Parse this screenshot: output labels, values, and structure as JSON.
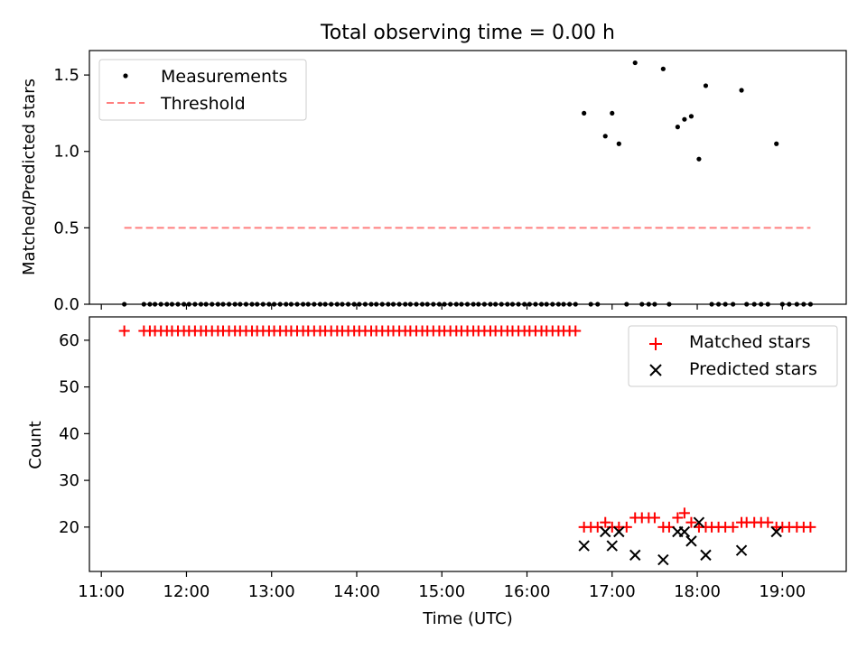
{
  "chart_data": [
    {
      "type": "scatter",
      "title": "Total observing time = 0.00 h",
      "ylabel": "Matched/Predicted stars",
      "xlabel": "",
      "xlim": [
        10.86,
        19.75
      ],
      "ylim": [
        0,
        1.66
      ],
      "yticks": [
        0.0,
        0.5,
        1.0,
        1.5
      ],
      "ytick_labels": [
        "0.0",
        "0.5",
        "1.0",
        "1.5"
      ],
      "legend_position": "upper-left",
      "grid": false,
      "series": [
        {
          "name": "Measurements",
          "marker": "dot",
          "color": "#000000",
          "points": [
            [
              11.27,
              0
            ],
            [
              11.5,
              0
            ],
            [
              11.57,
              0
            ],
            [
              11.63,
              0
            ],
            [
              11.7,
              0
            ],
            [
              11.77,
              0
            ],
            [
              11.83,
              0
            ],
            [
              11.9,
              0
            ],
            [
              11.97,
              0
            ],
            [
              12.03,
              0
            ],
            [
              12.1,
              0
            ],
            [
              12.17,
              0
            ],
            [
              12.23,
              0
            ],
            [
              12.3,
              0
            ],
            [
              12.37,
              0
            ],
            [
              12.43,
              0
            ],
            [
              12.5,
              0
            ],
            [
              12.57,
              0
            ],
            [
              12.63,
              0
            ],
            [
              12.7,
              0
            ],
            [
              12.77,
              0
            ],
            [
              12.83,
              0
            ],
            [
              12.9,
              0
            ],
            [
              12.97,
              0
            ],
            [
              13.03,
              0
            ],
            [
              13.1,
              0
            ],
            [
              13.17,
              0
            ],
            [
              13.23,
              0
            ],
            [
              13.3,
              0
            ],
            [
              13.37,
              0
            ],
            [
              13.43,
              0
            ],
            [
              13.5,
              0
            ],
            [
              13.57,
              0
            ],
            [
              13.63,
              0
            ],
            [
              13.7,
              0
            ],
            [
              13.77,
              0
            ],
            [
              13.83,
              0
            ],
            [
              13.9,
              0
            ],
            [
              13.97,
              0
            ],
            [
              14.03,
              0
            ],
            [
              14.1,
              0
            ],
            [
              14.17,
              0
            ],
            [
              14.23,
              0
            ],
            [
              14.3,
              0
            ],
            [
              14.37,
              0
            ],
            [
              14.43,
              0
            ],
            [
              14.5,
              0
            ],
            [
              14.57,
              0
            ],
            [
              14.63,
              0
            ],
            [
              14.7,
              0
            ],
            [
              14.77,
              0
            ],
            [
              14.83,
              0
            ],
            [
              14.9,
              0
            ],
            [
              14.97,
              0
            ],
            [
              15.03,
              0
            ],
            [
              15.1,
              0
            ],
            [
              15.17,
              0
            ],
            [
              15.23,
              0
            ],
            [
              15.3,
              0
            ],
            [
              15.37,
              0
            ],
            [
              15.43,
              0
            ],
            [
              15.5,
              0
            ],
            [
              15.57,
              0
            ],
            [
              15.63,
              0
            ],
            [
              15.7,
              0
            ],
            [
              15.77,
              0
            ],
            [
              15.83,
              0
            ],
            [
              15.9,
              0
            ],
            [
              15.97,
              0
            ],
            [
              16.03,
              0
            ],
            [
              16.1,
              0
            ],
            [
              16.17,
              0
            ],
            [
              16.23,
              0
            ],
            [
              16.3,
              0
            ],
            [
              16.37,
              0
            ],
            [
              16.43,
              0
            ],
            [
              16.5,
              0
            ],
            [
              16.57,
              0
            ],
            [
              16.67,
              1.25
            ],
            [
              16.75,
              0
            ],
            [
              16.83,
              0
            ],
            [
              16.92,
              1.1
            ],
            [
              17.0,
              1.25
            ],
            [
              17.08,
              1.05
            ],
            [
              17.17,
              0
            ],
            [
              17.27,
              1.58
            ],
            [
              17.35,
              0
            ],
            [
              17.43,
              0
            ],
            [
              17.5,
              0
            ],
            [
              17.6,
              1.54
            ],
            [
              17.67,
              0
            ],
            [
              17.77,
              1.16
            ],
            [
              17.85,
              1.21
            ],
            [
              17.93,
              1.23
            ],
            [
              18.02,
              0.95
            ],
            [
              18.1,
              1.43
            ],
            [
              18.17,
              0
            ],
            [
              18.25,
              0
            ],
            [
              18.33,
              0
            ],
            [
              18.42,
              0
            ],
            [
              18.52,
              1.4
            ],
            [
              18.58,
              0
            ],
            [
              18.67,
              0
            ],
            [
              18.75,
              0
            ],
            [
              18.83,
              0
            ],
            [
              18.93,
              1.05
            ],
            [
              19.0,
              0
            ],
            [
              19.08,
              0
            ],
            [
              19.17,
              0
            ],
            [
              19.25,
              0
            ],
            [
              19.33,
              0
            ]
          ]
        },
        {
          "name": "Threshold",
          "marker": "dashed-line",
          "color": "#ff7f7f",
          "points": [
            [
              11.27,
              0.5
            ],
            [
              19.33,
              0.5
            ]
          ]
        }
      ]
    },
    {
      "type": "scatter",
      "title": "",
      "xlabel": "Time (UTC)",
      "ylabel": "Count",
      "xlim": [
        10.86,
        19.75
      ],
      "ylim": [
        10.5,
        65
      ],
      "xticks": [
        11,
        12,
        13,
        14,
        15,
        16,
        17,
        18,
        19
      ],
      "xtick_labels": [
        "11:00",
        "12:00",
        "13:00",
        "14:00",
        "15:00",
        "16:00",
        "17:00",
        "18:00",
        "19:00"
      ],
      "yticks": [
        20,
        30,
        40,
        50,
        60
      ],
      "ytick_labels": [
        "20",
        "30",
        "40",
        "50",
        "60"
      ],
      "legend_position": "upper-right",
      "grid": false,
      "series": [
        {
          "name": "Matched stars",
          "marker": "plus",
          "color": "#ff0000",
          "points": [
            [
              11.27,
              62
            ],
            [
              11.5,
              62
            ],
            [
              11.57,
              62
            ],
            [
              11.63,
              62
            ],
            [
              11.7,
              62
            ],
            [
              11.77,
              62
            ],
            [
              11.83,
              62
            ],
            [
              11.9,
              62
            ],
            [
              11.97,
              62
            ],
            [
              12.03,
              62
            ],
            [
              12.1,
              62
            ],
            [
              12.17,
              62
            ],
            [
              12.23,
              62
            ],
            [
              12.3,
              62
            ],
            [
              12.37,
              62
            ],
            [
              12.43,
              62
            ],
            [
              12.5,
              62
            ],
            [
              12.57,
              62
            ],
            [
              12.63,
              62
            ],
            [
              12.7,
              62
            ],
            [
              12.77,
              62
            ],
            [
              12.83,
              62
            ],
            [
              12.9,
              62
            ],
            [
              12.97,
              62
            ],
            [
              13.03,
              62
            ],
            [
              13.1,
              62
            ],
            [
              13.17,
              62
            ],
            [
              13.23,
              62
            ],
            [
              13.3,
              62
            ],
            [
              13.37,
              62
            ],
            [
              13.43,
              62
            ],
            [
              13.5,
              62
            ],
            [
              13.57,
              62
            ],
            [
              13.63,
              62
            ],
            [
              13.7,
              62
            ],
            [
              13.77,
              62
            ],
            [
              13.83,
              62
            ],
            [
              13.9,
              62
            ],
            [
              13.97,
              62
            ],
            [
              14.03,
              62
            ],
            [
              14.1,
              62
            ],
            [
              14.17,
              62
            ],
            [
              14.23,
              62
            ],
            [
              14.3,
              62
            ],
            [
              14.37,
              62
            ],
            [
              14.43,
              62
            ],
            [
              14.5,
              62
            ],
            [
              14.57,
              62
            ],
            [
              14.63,
              62
            ],
            [
              14.7,
              62
            ],
            [
              14.77,
              62
            ],
            [
              14.83,
              62
            ],
            [
              14.9,
              62
            ],
            [
              14.97,
              62
            ],
            [
              15.03,
              62
            ],
            [
              15.1,
              62
            ],
            [
              15.17,
              62
            ],
            [
              15.23,
              62
            ],
            [
              15.3,
              62
            ],
            [
              15.37,
              62
            ],
            [
              15.43,
              62
            ],
            [
              15.5,
              62
            ],
            [
              15.57,
              62
            ],
            [
              15.63,
              62
            ],
            [
              15.7,
              62
            ],
            [
              15.77,
              62
            ],
            [
              15.83,
              62
            ],
            [
              15.9,
              62
            ],
            [
              15.97,
              62
            ],
            [
              16.03,
              62
            ],
            [
              16.1,
              62
            ],
            [
              16.17,
              62
            ],
            [
              16.23,
              62
            ],
            [
              16.3,
              62
            ],
            [
              16.37,
              62
            ],
            [
              16.43,
              62
            ],
            [
              16.5,
              62
            ],
            [
              16.57,
              62
            ],
            [
              16.67,
              20
            ],
            [
              16.75,
              20
            ],
            [
              16.83,
              20
            ],
            [
              16.92,
              21
            ],
            [
              17.0,
              20
            ],
            [
              17.08,
              20
            ],
            [
              17.17,
              20
            ],
            [
              17.27,
              22
            ],
            [
              17.35,
              22
            ],
            [
              17.43,
              22
            ],
            [
              17.5,
              22
            ],
            [
              17.6,
              20
            ],
            [
              17.67,
              20
            ],
            [
              17.77,
              22
            ],
            [
              17.85,
              23
            ],
            [
              17.93,
              21
            ],
            [
              18.02,
              20
            ],
            [
              18.1,
              20
            ],
            [
              18.17,
              20
            ],
            [
              18.25,
              20
            ],
            [
              18.33,
              20
            ],
            [
              18.42,
              20
            ],
            [
              18.52,
              21
            ],
            [
              18.58,
              21
            ],
            [
              18.67,
              21
            ],
            [
              18.75,
              21
            ],
            [
              18.83,
              21
            ],
            [
              18.93,
              20
            ],
            [
              19.0,
              20
            ],
            [
              19.08,
              20
            ],
            [
              19.17,
              20
            ],
            [
              19.25,
              20
            ],
            [
              19.33,
              20
            ]
          ]
        },
        {
          "name": "Predicted stars",
          "marker": "x",
          "color": "#000000",
          "points": [
            [
              16.67,
              16
            ],
            [
              16.92,
              19
            ],
            [
              17.0,
              16
            ],
            [
              17.08,
              19
            ],
            [
              17.27,
              14
            ],
            [
              17.6,
              13
            ],
            [
              17.77,
              19
            ],
            [
              17.85,
              19
            ],
            [
              17.93,
              17
            ],
            [
              18.02,
              21
            ],
            [
              18.1,
              14
            ],
            [
              18.52,
              15
            ],
            [
              18.93,
              19
            ]
          ]
        }
      ]
    }
  ]
}
